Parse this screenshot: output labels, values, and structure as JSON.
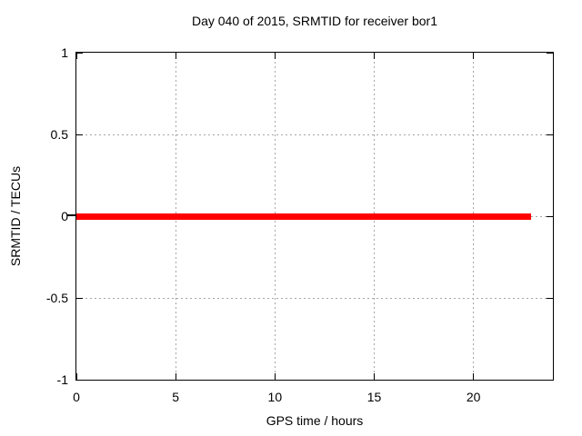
{
  "chart_data": {
    "type": "line",
    "title": "Day 040 of 2015, SRMTID for receiver bor1",
    "xlabel": "GPS time / hours",
    "ylabel": "SRMTID / TECUs",
    "xlim": [
      0,
      24
    ],
    "ylim": [
      -1,
      1
    ],
    "xticks": [
      {
        "value": 0,
        "label": "0"
      },
      {
        "value": 5,
        "label": "5"
      },
      {
        "value": 10,
        "label": "10"
      },
      {
        "value": 15,
        "label": "15"
      },
      {
        "value": 20,
        "label": "20"
      }
    ],
    "yticks": [
      {
        "value": 1,
        "label": "1"
      },
      {
        "value": 0.5,
        "label": "0.5"
      },
      {
        "value": 0,
        "label": "0"
      },
      {
        "value": -0.5,
        "label": "-0.5"
      },
      {
        "value": -1,
        "label": "-1"
      }
    ],
    "grid": true,
    "legend": "none",
    "series": [
      {
        "name": "SRMTID",
        "color": "#ff0000",
        "points": [
          [
            0,
            0
          ],
          [
            22.9,
            0
          ]
        ],
        "description": "constant zero line from 0 to 22.9 hours"
      }
    ],
    "colors": {
      "background": "#ffffff",
      "border": "#000000",
      "grid": "#a6a6a6",
      "text": "#000000",
      "line": "#ff0000"
    }
  }
}
